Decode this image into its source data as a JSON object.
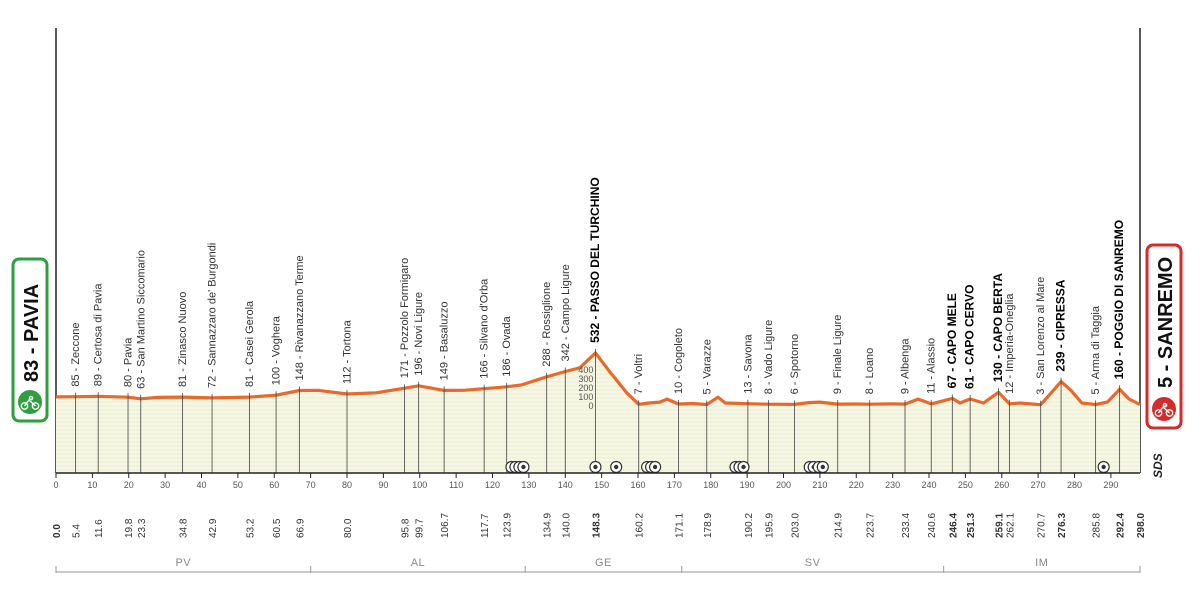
{
  "start": {
    "label": "83 - PAVIA",
    "border_color": "#2e9e3f",
    "icon": "cyclist-icon"
  },
  "finish": {
    "label": "5 - SANREMO",
    "border_color": "#d42a2a",
    "icon": "cyclist-icon"
  },
  "sponsor": "SDS",
  "chart_data": {
    "type": "area",
    "title": "",
    "xlabel": "",
    "ylabel": "",
    "xlim": [
      0,
      298.0
    ],
    "line_color": "#e86a2a",
    "fill_color": "#f6f7e4",
    "x_ticks": [
      0,
      10,
      20,
      30,
      40,
      50,
      60,
      70,
      80,
      90,
      100,
      110,
      120,
      130,
      140,
      150,
      160,
      170,
      180,
      190,
      200,
      210,
      220,
      230,
      240,
      250,
      260,
      270,
      280,
      290
    ],
    "altitude_scale_labels": [
      "400",
      "300",
      "200",
      "100",
      "0"
    ],
    "profile": [
      [
        0,
        83
      ],
      [
        5.4,
        85
      ],
      [
        11.6,
        89
      ],
      [
        19.8,
        80
      ],
      [
        23.3,
        63
      ],
      [
        28,
        78
      ],
      [
        34.8,
        81
      ],
      [
        42.9,
        72
      ],
      [
        53.2,
        81
      ],
      [
        60.5,
        100
      ],
      [
        66.9,
        148
      ],
      [
        72,
        150
      ],
      [
        80,
        112
      ],
      [
        88,
        125
      ],
      [
        95.8,
        171
      ],
      [
        99.7,
        196
      ],
      [
        106.7,
        149
      ],
      [
        112,
        150
      ],
      [
        117.7,
        166
      ],
      [
        123.9,
        186
      ],
      [
        128,
        205
      ],
      [
        134.9,
        288
      ],
      [
        140,
        342
      ],
      [
        144,
        380
      ],
      [
        148.3,
        532
      ],
      [
        152,
        350
      ],
      [
        157,
        120
      ],
      [
        160.2,
        7
      ],
      [
        163,
        20
      ],
      [
        166,
        30
      ],
      [
        168,
        60
      ],
      [
        171.1,
        10
      ],
      [
        175,
        15
      ],
      [
        178.9,
        5
      ],
      [
        182,
        80
      ],
      [
        184,
        20
      ],
      [
        190.2,
        13
      ],
      [
        195.9,
        8
      ],
      [
        203,
        6
      ],
      [
        207,
        25
      ],
      [
        210,
        30
      ],
      [
        214.9,
        9
      ],
      [
        220,
        10
      ],
      [
        223.7,
        8
      ],
      [
        230,
        12
      ],
      [
        233.4,
        9
      ],
      [
        237,
        60
      ],
      [
        240.6,
        11
      ],
      [
        246.4,
        67
      ],
      [
        248.5,
        20
      ],
      [
        251.3,
        61
      ],
      [
        255,
        20
      ],
      [
        259.1,
        130
      ],
      [
        262.1,
        12
      ],
      [
        265,
        20
      ],
      [
        270.7,
        3
      ],
      [
        273,
        100
      ],
      [
        276.3,
        239
      ],
      [
        279,
        150
      ],
      [
        282,
        20
      ],
      [
        285.8,
        5
      ],
      [
        289,
        30
      ],
      [
        292.4,
        160
      ],
      [
        295,
        60
      ],
      [
        298,
        5
      ]
    ],
    "locations": [
      {
        "km": 5.4,
        "name": "85 - Zeccone",
        "bold": false
      },
      {
        "km": 11.6,
        "name": "89 - Certosa di Pavia",
        "bold": false
      },
      {
        "km": 19.8,
        "name": "80 - Pavia",
        "bold": false
      },
      {
        "km": 23.3,
        "name": "63 - San Martino Siccomario",
        "bold": false
      },
      {
        "km": 34.8,
        "name": "81 - Zinasco Nuovo",
        "bold": false
      },
      {
        "km": 42.9,
        "name": "72 - Sannazzaro de' Burgondi",
        "bold": false
      },
      {
        "km": 53.2,
        "name": "81 - Casei Gerola",
        "bold": false
      },
      {
        "km": 60.5,
        "name": "100 - Voghera",
        "bold": false
      },
      {
        "km": 66.9,
        "name": "148 - Rivanazzano Terme",
        "bold": false
      },
      {
        "km": 80.0,
        "name": "112 - Tortona",
        "bold": false
      },
      {
        "km": 95.8,
        "name": "171 - Pozzolo Formigaro",
        "bold": false
      },
      {
        "km": 99.7,
        "name": "196 - Novi Ligure",
        "bold": false
      },
      {
        "km": 106.7,
        "name": "149 - Basaluzzo",
        "bold": false
      },
      {
        "km": 117.7,
        "name": "166 - Silvano d'Orba",
        "bold": false
      },
      {
        "km": 123.9,
        "name": "186 - Ovada",
        "bold": false
      },
      {
        "km": 134.9,
        "name": "288 - Rossiglione",
        "bold": false
      },
      {
        "km": 140.0,
        "name": "342 - Campo Ligure",
        "bold": false
      },
      {
        "km": 148.3,
        "name": "532 - PASSO DEL TURCHINO",
        "bold": true
      },
      {
        "km": 160.2,
        "name": "7 - Voltri",
        "bold": false
      },
      {
        "km": 171.1,
        "name": "10 - Cogoleto",
        "bold": false
      },
      {
        "km": 178.9,
        "name": "5 - Varazze",
        "bold": false
      },
      {
        "km": 190.2,
        "name": "13 - Savona",
        "bold": false
      },
      {
        "km": 195.9,
        "name": "8 - Vado Ligure",
        "bold": false
      },
      {
        "km": 203.0,
        "name": "6 - Spotorno",
        "bold": false
      },
      {
        "km": 214.9,
        "name": "9 - Finale Ligure",
        "bold": false
      },
      {
        "km": 223.7,
        "name": "8 - Loano",
        "bold": false
      },
      {
        "km": 233.4,
        "name": "9 - Albenga",
        "bold": false
      },
      {
        "km": 240.6,
        "name": "11 - Alassio",
        "bold": false
      },
      {
        "km": 246.4,
        "name": "67 - CAPO MELE",
        "bold": true
      },
      {
        "km": 251.3,
        "name": "61 - CAPO CERVO",
        "bold": true
      },
      {
        "km": 259.1,
        "name": "130 - CAPO BERTA",
        "bold": true
      },
      {
        "km": 262.1,
        "name": "12 - Imperia-Oneglia",
        "bold": false
      },
      {
        "km": 270.7,
        "name": "3 - San Lorenzo al Mare",
        "bold": false
      },
      {
        "km": 276.3,
        "name": "239 - CIPRESSA",
        "bold": true
      },
      {
        "km": 285.8,
        "name": "5 - Arma di Taggia",
        "bold": false
      },
      {
        "km": 292.4,
        "name": "160 - POGGIO DI SANREMO",
        "bold": true
      }
    ],
    "km_labels": [
      {
        "km": 0.0,
        "label": "0.0",
        "bold": true
      },
      {
        "km": 5.4,
        "label": "5.4",
        "bold": false
      },
      {
        "km": 11.6,
        "label": "11.6",
        "bold": false
      },
      {
        "km": 19.8,
        "label": "19.8",
        "bold": false
      },
      {
        "km": 23.3,
        "label": "23.3",
        "bold": false
      },
      {
        "km": 34.8,
        "label": "34.8",
        "bold": false
      },
      {
        "km": 42.9,
        "label": "42.9",
        "bold": false
      },
      {
        "km": 53.2,
        "label": "53.2",
        "bold": false
      },
      {
        "km": 60.5,
        "label": "60.5",
        "bold": false
      },
      {
        "km": 66.9,
        "label": "66.9",
        "bold": false
      },
      {
        "km": 80.0,
        "label": "80.0",
        "bold": false
      },
      {
        "km": 95.8,
        "label": "95.8",
        "bold": false
      },
      {
        "km": 99.7,
        "label": "99.7",
        "bold": false
      },
      {
        "km": 106.7,
        "label": "106.7",
        "bold": false
      },
      {
        "km": 117.7,
        "label": "117.7",
        "bold": false
      },
      {
        "km": 123.9,
        "label": "123.9",
        "bold": false
      },
      {
        "km": 134.9,
        "label": "134.9",
        "bold": false
      },
      {
        "km": 140.0,
        "label": "140.0",
        "bold": false
      },
      {
        "km": 148.3,
        "label": "148.3",
        "bold": true
      },
      {
        "km": 160.2,
        "label": "160.2",
        "bold": false
      },
      {
        "km": 171.1,
        "label": "171.1",
        "bold": false
      },
      {
        "km": 178.9,
        "label": "178.9",
        "bold": false
      },
      {
        "km": 190.2,
        "label": "190.2",
        "bold": false
      },
      {
        "km": 195.9,
        "label": "195.9",
        "bold": false
      },
      {
        "km": 203.0,
        "label": "203.0",
        "bold": false
      },
      {
        "km": 214.9,
        "label": "214.9",
        "bold": false
      },
      {
        "km": 223.7,
        "label": "223.7",
        "bold": false
      },
      {
        "km": 233.4,
        "label": "233.4",
        "bold": false
      },
      {
        "km": 240.6,
        "label": "240.6",
        "bold": false
      },
      {
        "km": 246.4,
        "label": "246.4",
        "bold": true
      },
      {
        "km": 251.3,
        "label": "251.3",
        "bold": true
      },
      {
        "km": 259.1,
        "label": "259.1",
        "bold": true
      },
      {
        "km": 262.1,
        "label": "262.1",
        "bold": false
      },
      {
        "km": 270.7,
        "label": "270.7",
        "bold": false
      },
      {
        "km": 276.3,
        "label": "276.3",
        "bold": true
      },
      {
        "km": 285.8,
        "label": "285.8",
        "bold": false
      },
      {
        "km": 292.4,
        "label": "292.4",
        "bold": true
      },
      {
        "km": 298.0,
        "label": "298.0",
        "bold": true
      }
    ],
    "markers": [
      {
        "km": 125.2
      },
      {
        "km": 126.3
      },
      {
        "km": 127.4
      },
      {
        "km": 128.5
      },
      {
        "km": 148.3
      },
      {
        "km": 154.0
      },
      {
        "km": 162.5
      },
      {
        "km": 163.6
      },
      {
        "km": 164.7
      },
      {
        "km": 186.8
      },
      {
        "km": 187.9
      },
      {
        "km": 189.0
      },
      {
        "km": 207.2
      },
      {
        "km": 208.3
      },
      {
        "km": 209.7
      },
      {
        "km": 210.8
      },
      {
        "km": 288.0
      }
    ],
    "regions": [
      {
        "code": "PV",
        "from": 0,
        "to": 70
      },
      {
        "code": "AL",
        "from": 70,
        "to": 129
      },
      {
        "code": "GE",
        "from": 129,
        "to": 172
      },
      {
        "code": "SV",
        "from": 172,
        "to": 244
      },
      {
        "code": "IM",
        "from": 244,
        "to": 298
      }
    ]
  }
}
